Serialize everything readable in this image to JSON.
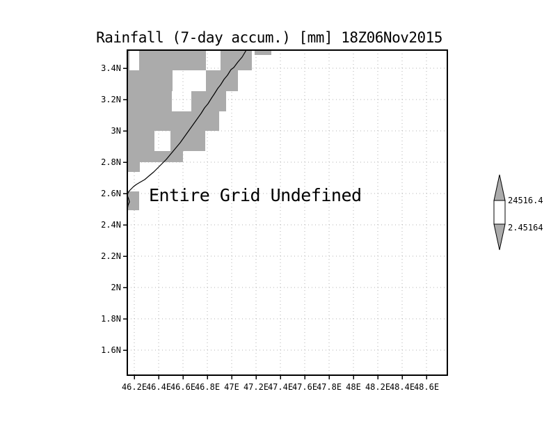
{
  "chart_data": {
    "type": "heatmap",
    "title": "Rainfall (7-day accum.) [mm] 18Z06Nov2015",
    "x_ticks": [
      "46.2E",
      "46.4E",
      "46.6E",
      "46.8E",
      "47E",
      "47.2E",
      "47.4E",
      "47.6E",
      "47.8E",
      "48E",
      "48.2E",
      "48.4E",
      "48.6E"
    ],
    "y_ticks": [
      "3.4N",
      "3.2N",
      "3N",
      "2.8N",
      "2.6N",
      "2.4N",
      "2.2N",
      "2N",
      "1.8N",
      "1.6N"
    ],
    "xlim": [
      46.14,
      48.77
    ],
    "ylim": [
      1.44,
      3.52
    ],
    "grid": true,
    "annotation": "Entire Grid Undefined",
    "data_status": "all grid values undefined; gray stair-step mask over northwest region with coastline outline",
    "colorbar": {
      "position": "right",
      "labels": [
        "24516.4",
        "2.45164"
      ],
      "levels": [
        24516.4,
        2.45164
      ]
    }
  },
  "colors": {
    "shade_gray": "#ababab",
    "gridline_gray": "#b0b0b0",
    "outline_black": "#000000",
    "background": "#ffffff"
  }
}
